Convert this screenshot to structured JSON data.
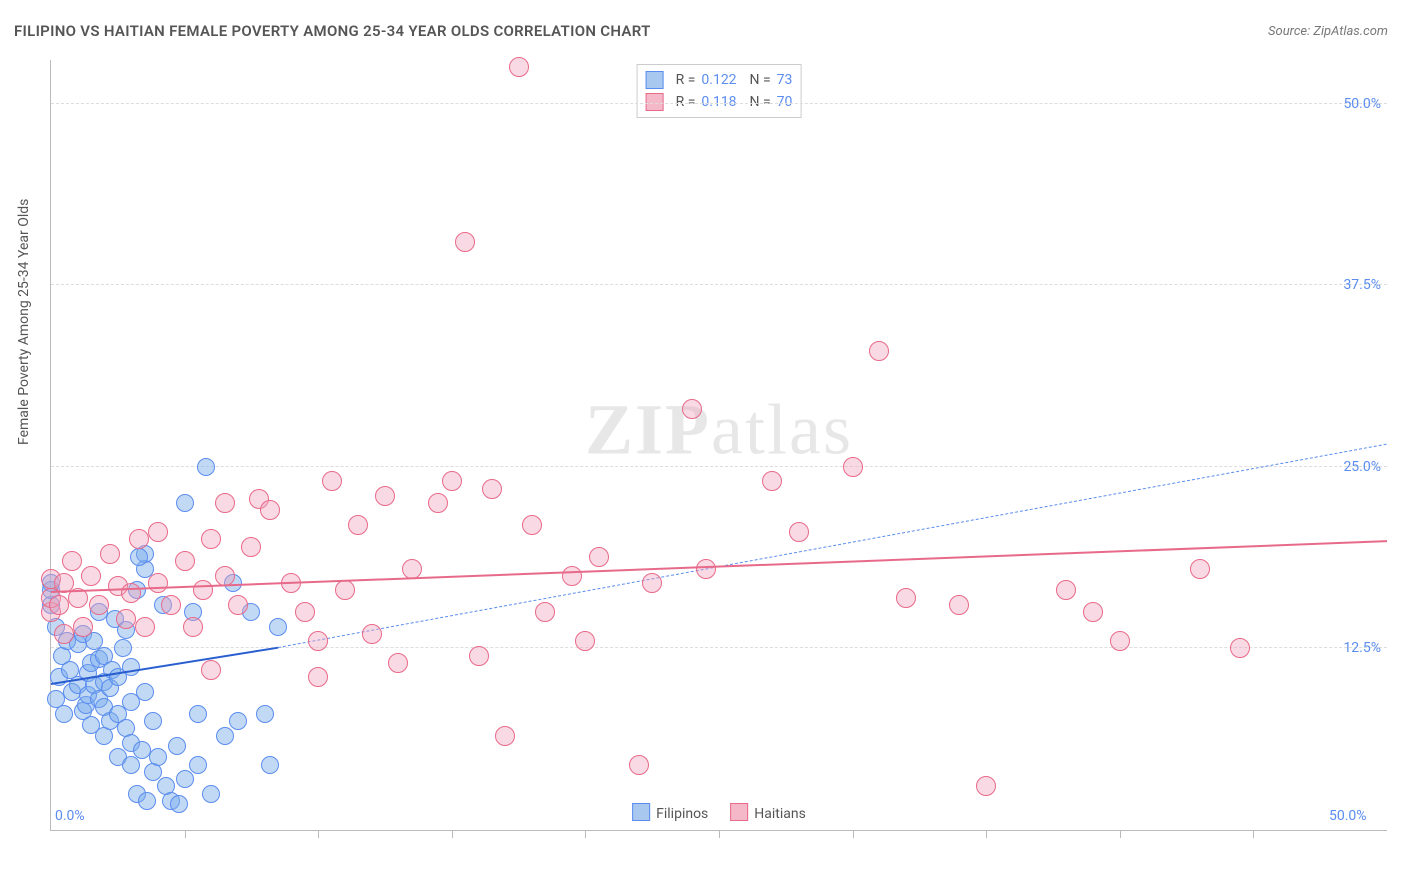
{
  "title": "FILIPINO VS HAITIAN FEMALE POVERTY AMONG 25-34 YEAR OLDS CORRELATION CHART",
  "source": "Source: ZipAtlas.com",
  "watermark": {
    "bold": "ZIP",
    "rest": "atlas"
  },
  "axes": {
    "ylabel": "Female Poverty Among 25-34 Year Olds",
    "xmin": 0,
    "xmax": 50,
    "ymin": 0,
    "ymax": 53,
    "xlabels": [
      {
        "v": 0,
        "t": "0.0%"
      },
      {
        "v": 50,
        "t": "50.0%"
      }
    ],
    "ylabels": [
      {
        "v": 12.5,
        "t": "12.5%"
      },
      {
        "v": 25,
        "t": "25.0%"
      },
      {
        "v": 37.5,
        "t": "37.5%"
      },
      {
        "v": 50,
        "t": "50.0%"
      }
    ],
    "xticks": [
      5,
      10,
      15,
      20,
      25,
      30,
      35,
      40,
      45
    ],
    "grid_color": "#dddddd"
  },
  "legend_top": [
    {
      "sw_fill": "#a8c8f0",
      "sw_border": "#5b8def",
      "r": "0.122",
      "n": "73"
    },
    {
      "sw_fill": "#f5b8c8",
      "sw_border": "#e86a8a",
      "r": "0.118",
      "n": "70"
    }
  ],
  "legend_bottom": [
    {
      "label": "Filipinos",
      "sw_fill": "#a8c8f0",
      "sw_border": "#5b8def"
    },
    {
      "label": "Haitians",
      "sw_fill": "#f5b8c8",
      "sw_border": "#e86a8a"
    }
  ],
  "series": [
    {
      "name": "Filipinos",
      "color_fill": "rgba(120,170,235,0.45)",
      "color_stroke": "#5b8def",
      "marker_r": 8,
      "trend": {
        "x1": 0,
        "y1": 10.0,
        "x2": 8.5,
        "y2": 12.5,
        "color": "#2a5fd0",
        "width": 2,
        "dash": false
      },
      "extrap": {
        "x1": 8.5,
        "y1": 12.5,
        "x2": 50,
        "y2": 26.5,
        "color": "#5b8def",
        "width": 1,
        "dash": true
      },
      "points": [
        [
          0.2,
          9
        ],
        [
          0.3,
          10.5
        ],
        [
          0.4,
          12
        ],
        [
          0.5,
          8
        ],
        [
          0.6,
          13
        ],
        [
          0,
          15.5
        ],
        [
          0,
          16.5
        ],
        [
          0,
          17
        ],
        [
          0.2,
          14
        ],
        [
          0.7,
          11
        ],
        [
          0.8,
          9.5
        ],
        [
          1,
          10
        ],
        [
          1.0,
          12.8
        ],
        [
          1.2,
          13.5
        ],
        [
          1.2,
          8.2
        ],
        [
          1.3,
          8.6
        ],
        [
          1.4,
          9.3
        ],
        [
          1.4,
          10.8
        ],
        [
          1.5,
          7.2
        ],
        [
          1.5,
          11.5
        ],
        [
          1.6,
          10
        ],
        [
          1.6,
          13
        ],
        [
          1.8,
          9
        ],
        [
          1.8,
          11.8
        ],
        [
          1.8,
          15
        ],
        [
          2,
          6.5
        ],
        [
          2,
          8.5
        ],
        [
          2,
          10.2
        ],
        [
          2,
          12
        ],
        [
          2.2,
          7.5
        ],
        [
          2.2,
          9.8
        ],
        [
          2.3,
          11
        ],
        [
          2.4,
          14.5
        ],
        [
          2.5,
          5
        ],
        [
          2.5,
          8
        ],
        [
          2.5,
          10.5
        ],
        [
          2.7,
          12.5
        ],
        [
          2.8,
          7
        ],
        [
          2.8,
          13.8
        ],
        [
          3,
          4.5
        ],
        [
          3,
          6
        ],
        [
          3,
          8.8
        ],
        [
          3,
          11.2
        ],
        [
          3.2,
          16.5
        ],
        [
          3.2,
          2.5
        ],
        [
          3.4,
          5.5
        ],
        [
          3.5,
          9.5
        ],
        [
          3.5,
          18
        ],
        [
          3.5,
          19
        ],
        [
          3.6,
          2
        ],
        [
          3.8,
          4
        ],
        [
          3.8,
          7.5
        ],
        [
          4,
          5
        ],
        [
          4.2,
          15.5
        ],
        [
          4.3,
          3
        ],
        [
          4.5,
          2
        ],
        [
          4.7,
          5.8
        ],
        [
          4.8,
          1.8
        ],
        [
          5,
          3.5
        ],
        [
          5,
          22.5
        ],
        [
          5.3,
          15
        ],
        [
          5.5,
          8
        ],
        [
          5.5,
          4.5
        ],
        [
          5.8,
          25
        ],
        [
          6,
          2.5
        ],
        [
          6.5,
          6.5
        ],
        [
          6.8,
          17
        ],
        [
          7,
          7.5
        ],
        [
          7.5,
          15
        ],
        [
          8,
          8
        ],
        [
          8.2,
          4.5
        ],
        [
          8.5,
          14
        ],
        [
          3.3,
          18.8
        ]
      ]
    },
    {
      "name": "Haitians",
      "color_fill": "rgba(240,160,185,0.40)",
      "color_stroke": "#e86a8a",
      "marker_r": 9,
      "trend": {
        "x1": 0,
        "y1": 16.3,
        "x2": 50,
        "y2": 19.8,
        "color": "#e86a8a",
        "width": 2.5,
        "dash": false
      },
      "points": [
        [
          0,
          15
        ],
        [
          0,
          16
        ],
        [
          0,
          17.3
        ],
        [
          0.3,
          15.5
        ],
        [
          0.5,
          17
        ],
        [
          0.5,
          13.5
        ],
        [
          0.8,
          18.5
        ],
        [
          1,
          16
        ],
        [
          1.2,
          14
        ],
        [
          1.5,
          17.5
        ],
        [
          1.8,
          15.5
        ],
        [
          2.2,
          19
        ],
        [
          2.5,
          16.8
        ],
        [
          2.8,
          14.5
        ],
        [
          3.3,
          20
        ],
        [
          3.5,
          14
        ],
        [
          3.0,
          16.3
        ],
        [
          4,
          17
        ],
        [
          4,
          20.5
        ],
        [
          4.5,
          15.5
        ],
        [
          5,
          18.5
        ],
        [
          5.3,
          14
        ],
        [
          5.7,
          16.5
        ],
        [
          6,
          20
        ],
        [
          6,
          11
        ],
        [
          6.5,
          17.5
        ],
        [
          6.5,
          22.5
        ],
        [
          7,
          15.5
        ],
        [
          7.5,
          19.5
        ],
        [
          7.8,
          22.8
        ],
        [
          8.2,
          22
        ],
        [
          9,
          17
        ],
        [
          9.5,
          15
        ],
        [
          10,
          10.5
        ],
        [
          10,
          13
        ],
        [
          10.5,
          24
        ],
        [
          11,
          16.5
        ],
        [
          11.5,
          21
        ],
        [
          12,
          13.5
        ],
        [
          12.5,
          23
        ],
        [
          13,
          11.5
        ],
        [
          13.5,
          18
        ],
        [
          14.5,
          22.5
        ],
        [
          15,
          24
        ],
        [
          15.5,
          40.5
        ],
        [
          16,
          12
        ],
        [
          16.5,
          23.5
        ],
        [
          17,
          6.5
        ],
        [
          17.5,
          52.5
        ],
        [
          18,
          21
        ],
        [
          18.5,
          15
        ],
        [
          19.5,
          17.5
        ],
        [
          20,
          13
        ],
        [
          20.5,
          18.8
        ],
        [
          22,
          4.5
        ],
        [
          22.5,
          17
        ],
        [
          24,
          29
        ],
        [
          24.5,
          18
        ],
        [
          27,
          24
        ],
        [
          28,
          20.5
        ],
        [
          30,
          25
        ],
        [
          31,
          33
        ],
        [
          32,
          16
        ],
        [
          34,
          15.5
        ],
        [
          35,
          3
        ],
        [
          38,
          16.5
        ],
        [
          39,
          15
        ],
        [
          40,
          13
        ],
        [
          43,
          18
        ],
        [
          44.5,
          12.5
        ]
      ]
    }
  ]
}
